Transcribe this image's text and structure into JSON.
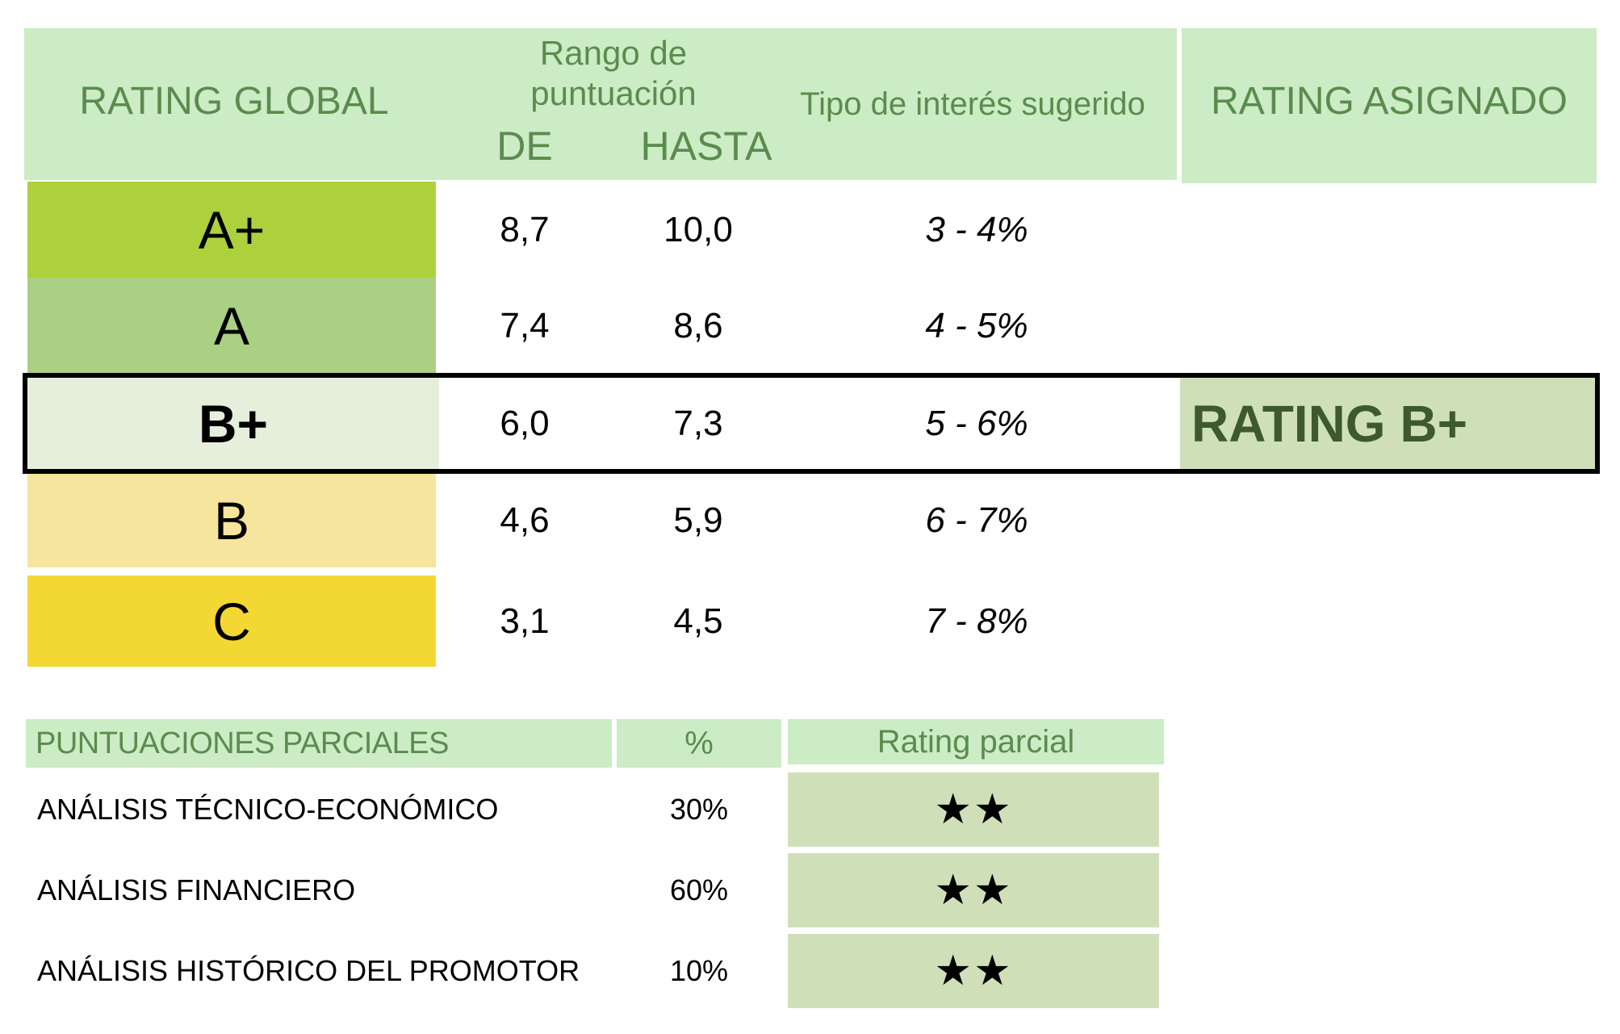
{
  "header": {
    "rating_global": "RATING GLOBAL",
    "rango_line1": "Rango de",
    "rango_line2": "puntuación",
    "de": "DE",
    "hasta": "HASTA",
    "tipo_interes": "Tipo de interés sugerido",
    "rating_asignado": "RATING ASIGNADO"
  },
  "ratings": [
    {
      "grade": "A+",
      "de": "8,7",
      "hasta": "10,0",
      "rate": "3 - 4%",
      "color": "#add13c"
    },
    {
      "grade": "A",
      "de": "7,4",
      "hasta": "8,6",
      "rate": "4 - 5%",
      "color": "#aad084"
    },
    {
      "grade": "B+",
      "de": "6,0",
      "hasta": "7,3",
      "rate": "5 - 6%",
      "color": "#e5efdb"
    },
    {
      "grade": "B",
      "de": "4,6",
      "hasta": "5,9",
      "rate": "6 - 7%",
      "color": "#f6e59d"
    },
    {
      "grade": "C",
      "de": "3,1",
      "hasta": "4,5",
      "rate": "7 - 8%",
      "color": "#f3d733"
    }
  ],
  "assigned": {
    "label": "RATING B+",
    "row_index": 2,
    "bg": "#cfe0b9",
    "text_color": "#3e5a2c"
  },
  "partial": {
    "header": {
      "label": "PUNTUACIONES PARCIALES",
      "pct": "%",
      "rating": "Rating parcial"
    },
    "rows": [
      {
        "label": "ANÁLISIS TÉCNICO-ECONÓMICO",
        "pct": "30%",
        "stars": "★★",
        "stars_count": 2
      },
      {
        "label": "ANÁLISIS FINANCIERO",
        "pct": "60%",
        "stars": "★★",
        "stars_count": 2
      },
      {
        "label": "ANÁLISIS HISTÓRICO DEL PROMOTOR",
        "pct": "10%",
        "stars": "★★",
        "stars_count": 2
      }
    ]
  },
  "colors": {
    "header_bg": "#cbecc4",
    "header_text": "#5b8b4e",
    "highlight_border": "#000000"
  }
}
